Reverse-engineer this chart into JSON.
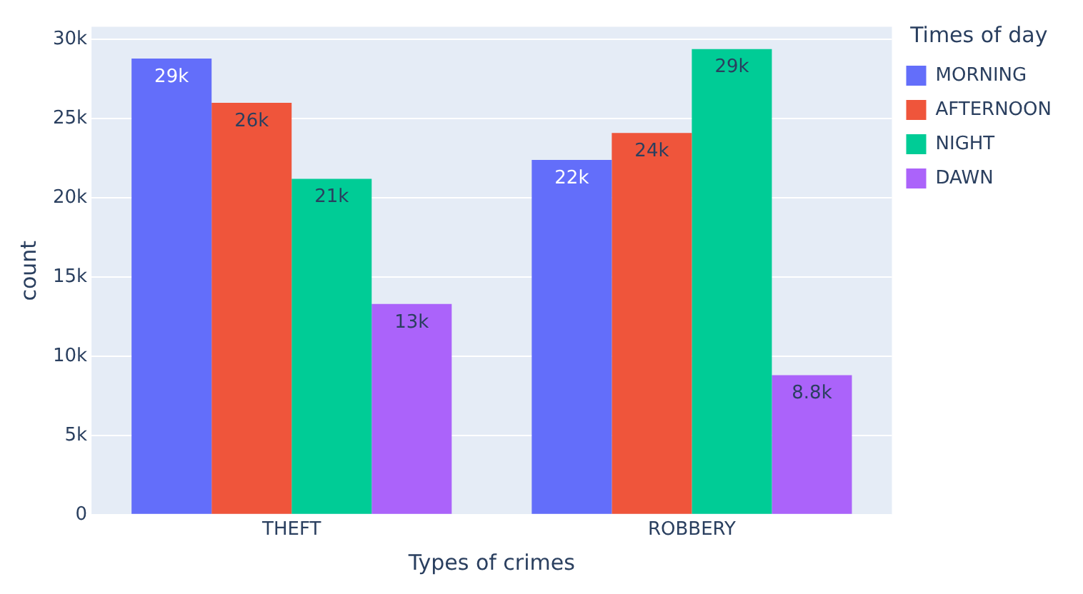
{
  "chart_data": {
    "type": "bar",
    "xlabel": "Types of crimes",
    "ylabel": "count",
    "legend_title": "Times of day",
    "categories": [
      "THEFT",
      "ROBBERY"
    ],
    "series": [
      {
        "name": "MORNING",
        "color": "#636efa",
        "values": [
          28800,
          22400
        ],
        "value_labels": [
          "29k",
          "22k"
        ]
      },
      {
        "name": "AFTERNOON",
        "color": "#ef553b",
        "values": [
          26000,
          24100
        ],
        "value_labels": [
          "26k",
          "24k"
        ]
      },
      {
        "name": "NIGHT",
        "color": "#00cc96",
        "values": [
          21200,
          29400
        ],
        "value_labels": [
          "21k",
          "29k"
        ]
      },
      {
        "name": "DAWN",
        "color": "#ab63fa",
        "values": [
          13300,
          8800
        ],
        "value_labels": [
          "13k",
          "8.8k"
        ]
      }
    ],
    "ylim": [
      0,
      30800
    ],
    "yticks": [
      0,
      {
        "value": 5000,
        "label": "5k"
      },
      {
        "value": 10000,
        "label": "10k"
      },
      {
        "value": 15000,
        "label": "15k"
      },
      {
        "value": 20000,
        "label": "20k"
      },
      {
        "value": 25000,
        "label": "25k"
      },
      {
        "value": 30000,
        "label": "30k"
      }
    ],
    "grid": "y",
    "legend": "right"
  }
}
